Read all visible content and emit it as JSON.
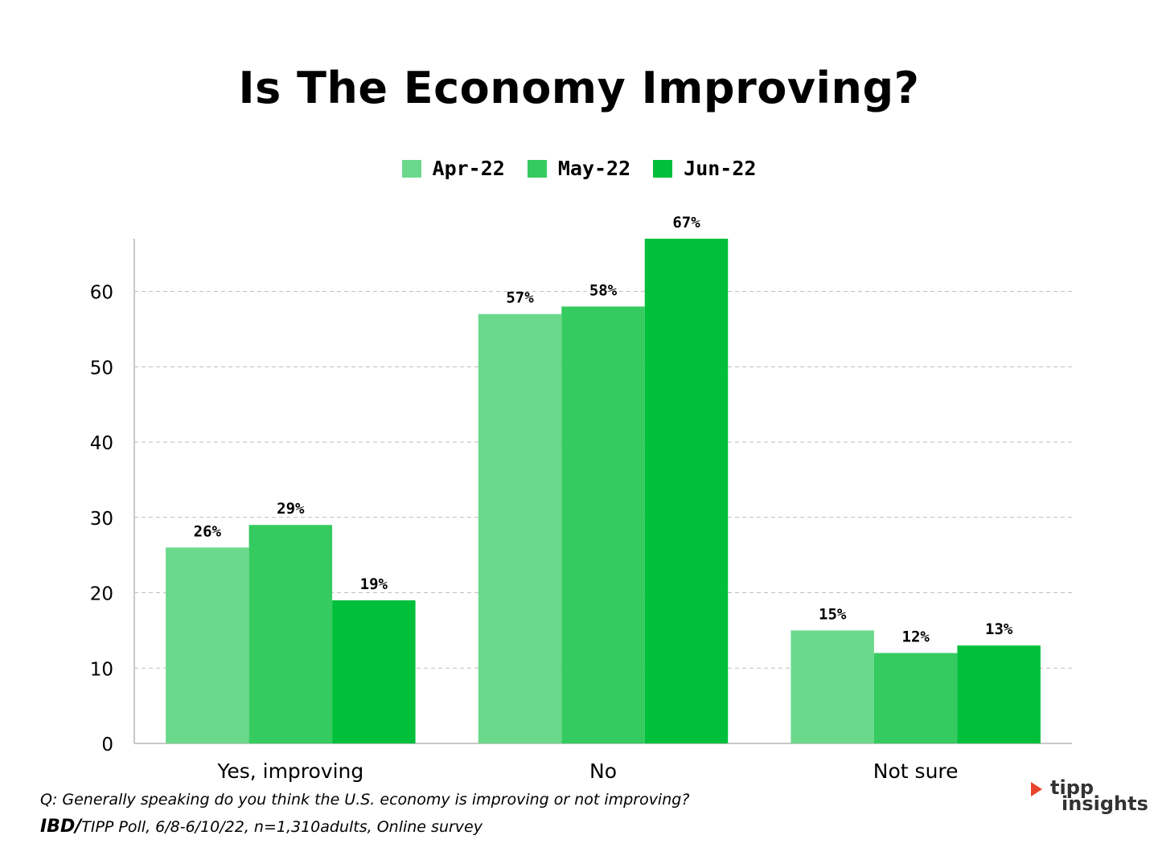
{
  "chart_data": {
    "type": "bar",
    "title": "Is The Economy Improving?",
    "categories": [
      "Yes, improving",
      "No",
      "Not sure"
    ],
    "series": [
      {
        "name": "Apr-22",
        "values": [
          26,
          57,
          15
        ],
        "labels": [
          "26%",
          "57%",
          "15%"
        ],
        "color": "#6bd98b"
      },
      {
        "name": "May-22",
        "values": [
          29,
          58,
          12
        ],
        "labels": [
          "29%",
          "58%",
          "12%"
        ],
        "color": "#36cb60"
      },
      {
        "name": "Jun-22",
        "values": [
          19,
          67,
          13
        ],
        "labels": [
          "19%",
          "67%",
          "13%"
        ],
        "color": "#00bf3a"
      }
    ],
    "ylim": [
      0,
      67
    ],
    "yticks": [
      0,
      10,
      20,
      30,
      40,
      50,
      60
    ],
    "grid": true,
    "legend": "top-center"
  },
  "footnotes": {
    "question": "Q:  Generally speaking do you think the U.S. economy is improving or not improving?",
    "source_bold": "IBD/",
    "source_rest": "TIPP Poll, 6/8-6/10/22, n=1,310adults, Online survey"
  },
  "logo": {
    "line1": "tipp",
    "line2": "insights",
    "accent": "#e8452c"
  }
}
